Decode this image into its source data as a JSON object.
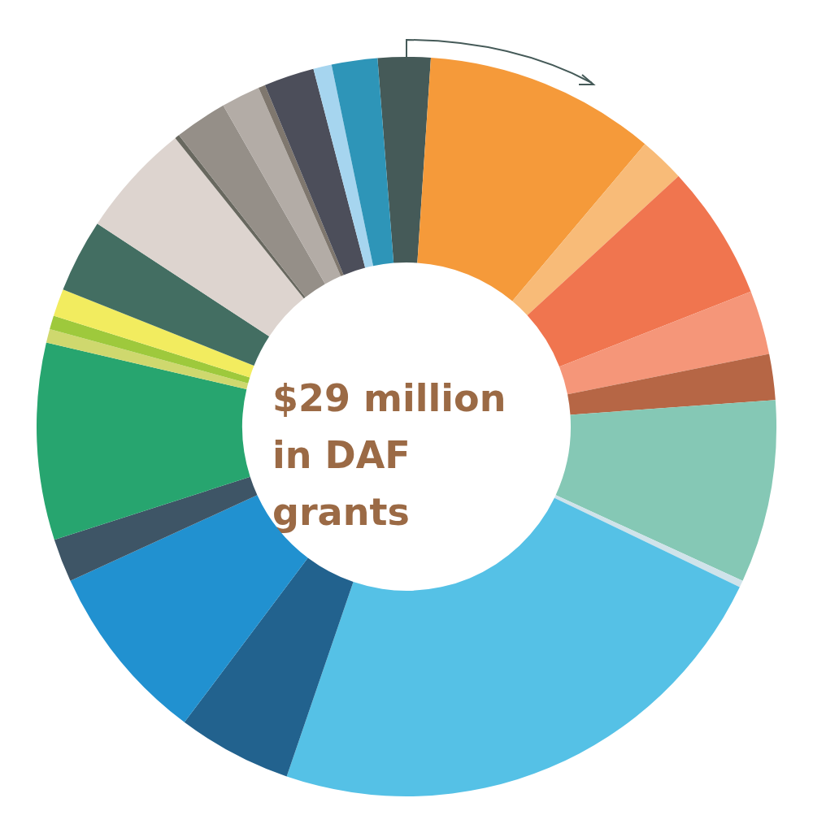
{
  "chart_data": {
    "type": "donut",
    "title": "$29 million in DAF grants",
    "categories": [
      null,
      null,
      null,
      null,
      null,
      null,
      null,
      null,
      null,
      null,
      null,
      null,
      null,
      null,
      null,
      null,
      null,
      null,
      null,
      null,
      null,
      null,
      null,
      null,
      null
    ],
    "values": [
      2.3,
      10.1,
      2.0,
      5.9,
      2.8,
      2.0,
      8.0,
      0.3,
      23.1,
      5.0,
      7.9,
      1.9,
      8.6,
      0.6,
      0.6,
      1.2,
      3.2,
      5.0,
      0.2,
      2.3,
      1.7,
      0.3,
      2.2,
      0.8,
      2.0
    ],
    "colors": [
      "#455a58",
      "#f59a3a",
      "#f8bb78",
      "#f0754f",
      "#f59679",
      "#b66645",
      "#85c8b5",
      "#cfe3ea",
      "#55c1e6",
      "#22628e",
      "#2191d0",
      "#3e5566",
      "#27a56f",
      "#cfd86e",
      "#9ec93c",
      "#f2ec5f",
      "#436e62",
      "#ddd4cf",
      "#68685f",
      "#958f88",
      "#b3aca6",
      "#7f776e",
      "#4c4e5a",
      "#a6d5ef",
      "#2e95b8"
    ]
  }
}
